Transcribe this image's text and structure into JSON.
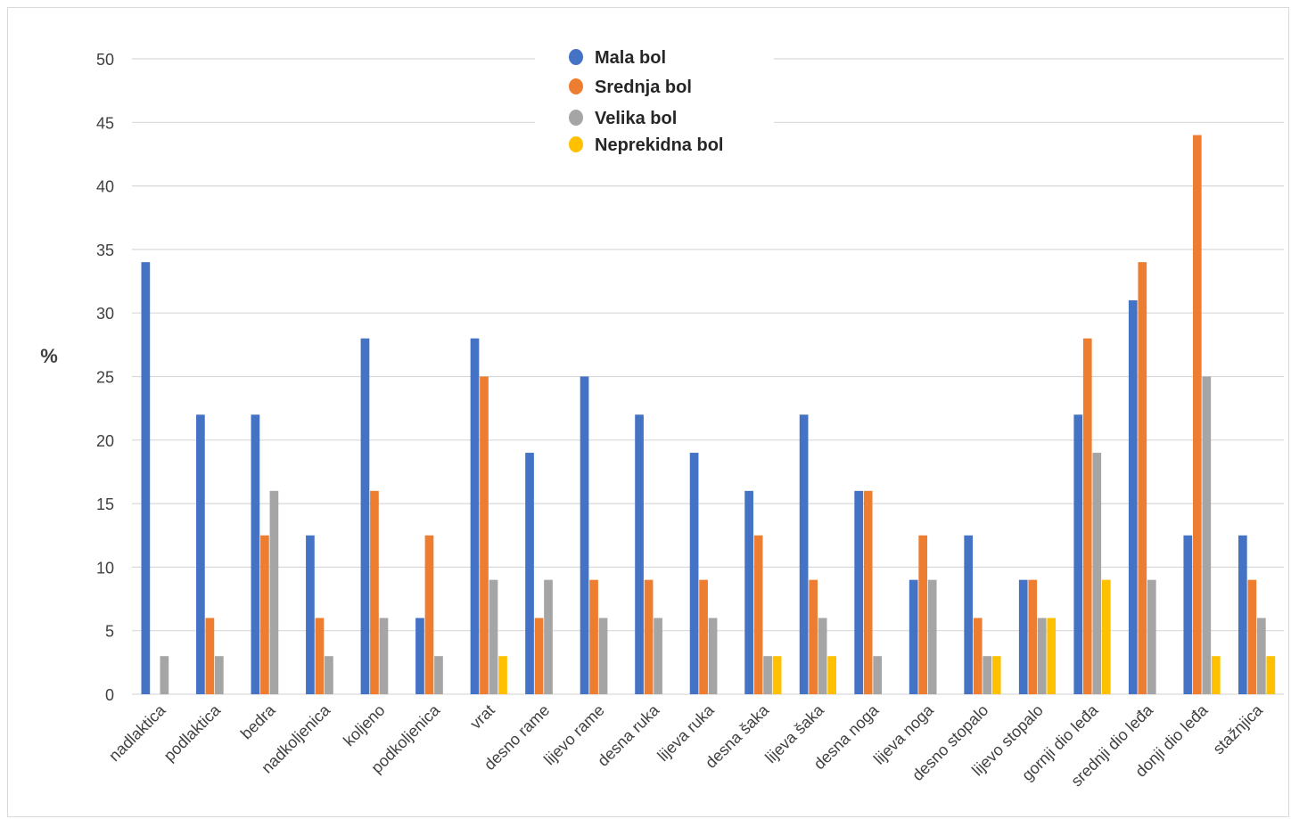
{
  "chart_data": {
    "type": "bar",
    "ylabel": "%",
    "ylim": [
      0,
      50
    ],
    "yticks": [
      0,
      5,
      10,
      15,
      20,
      25,
      30,
      35,
      40,
      45,
      50
    ],
    "grid": true,
    "legend_position": "top",
    "categories": [
      "nadlaktica",
      "podlaktica",
      "bedra",
      "nadkoljenica",
      "koljeno",
      "podkoljenica",
      "vrat",
      "desno rame",
      "lijevo rame",
      "desna ruka",
      "lijeva ruka",
      "desna šaka",
      "lijeva šaka",
      "desna noga",
      "lijeva noga",
      "desno stopalo",
      "lijevo stopalo",
      "gornji dio leđa",
      "srednji dio leđa",
      "donji dio leđa",
      "stažnjica"
    ],
    "series": [
      {
        "name": "Mala bol",
        "color": "#4472c4",
        "values": [
          34,
          22,
          22,
          12.5,
          28,
          6,
          28,
          19,
          25,
          22,
          19,
          16,
          22,
          16,
          9,
          12.5,
          9,
          22,
          31,
          12.5,
          12.5
        ]
      },
      {
        "name": "Srednja bol",
        "color": "#ed7d31",
        "values": [
          0,
          6,
          12.5,
          6,
          16,
          12.5,
          25,
          6,
          9,
          9,
          9,
          12.5,
          9,
          16,
          12.5,
          6,
          9,
          28,
          34,
          44,
          9
        ]
      },
      {
        "name": "Velika bol",
        "color": "#a5a5a5",
        "values": [
          3,
          3,
          16,
          3,
          6,
          3,
          9,
          9,
          6,
          6,
          6,
          3,
          6,
          3,
          9,
          3,
          6,
          19,
          9,
          25,
          6
        ]
      },
      {
        "name": "Neprekidna bol",
        "color": "#ffc000",
        "values": [
          0,
          0,
          0,
          0,
          0,
          0,
          3,
          0,
          0,
          0,
          0,
          3,
          3,
          0,
          0,
          3,
          6,
          9,
          0,
          3,
          3
        ]
      }
    ]
  }
}
